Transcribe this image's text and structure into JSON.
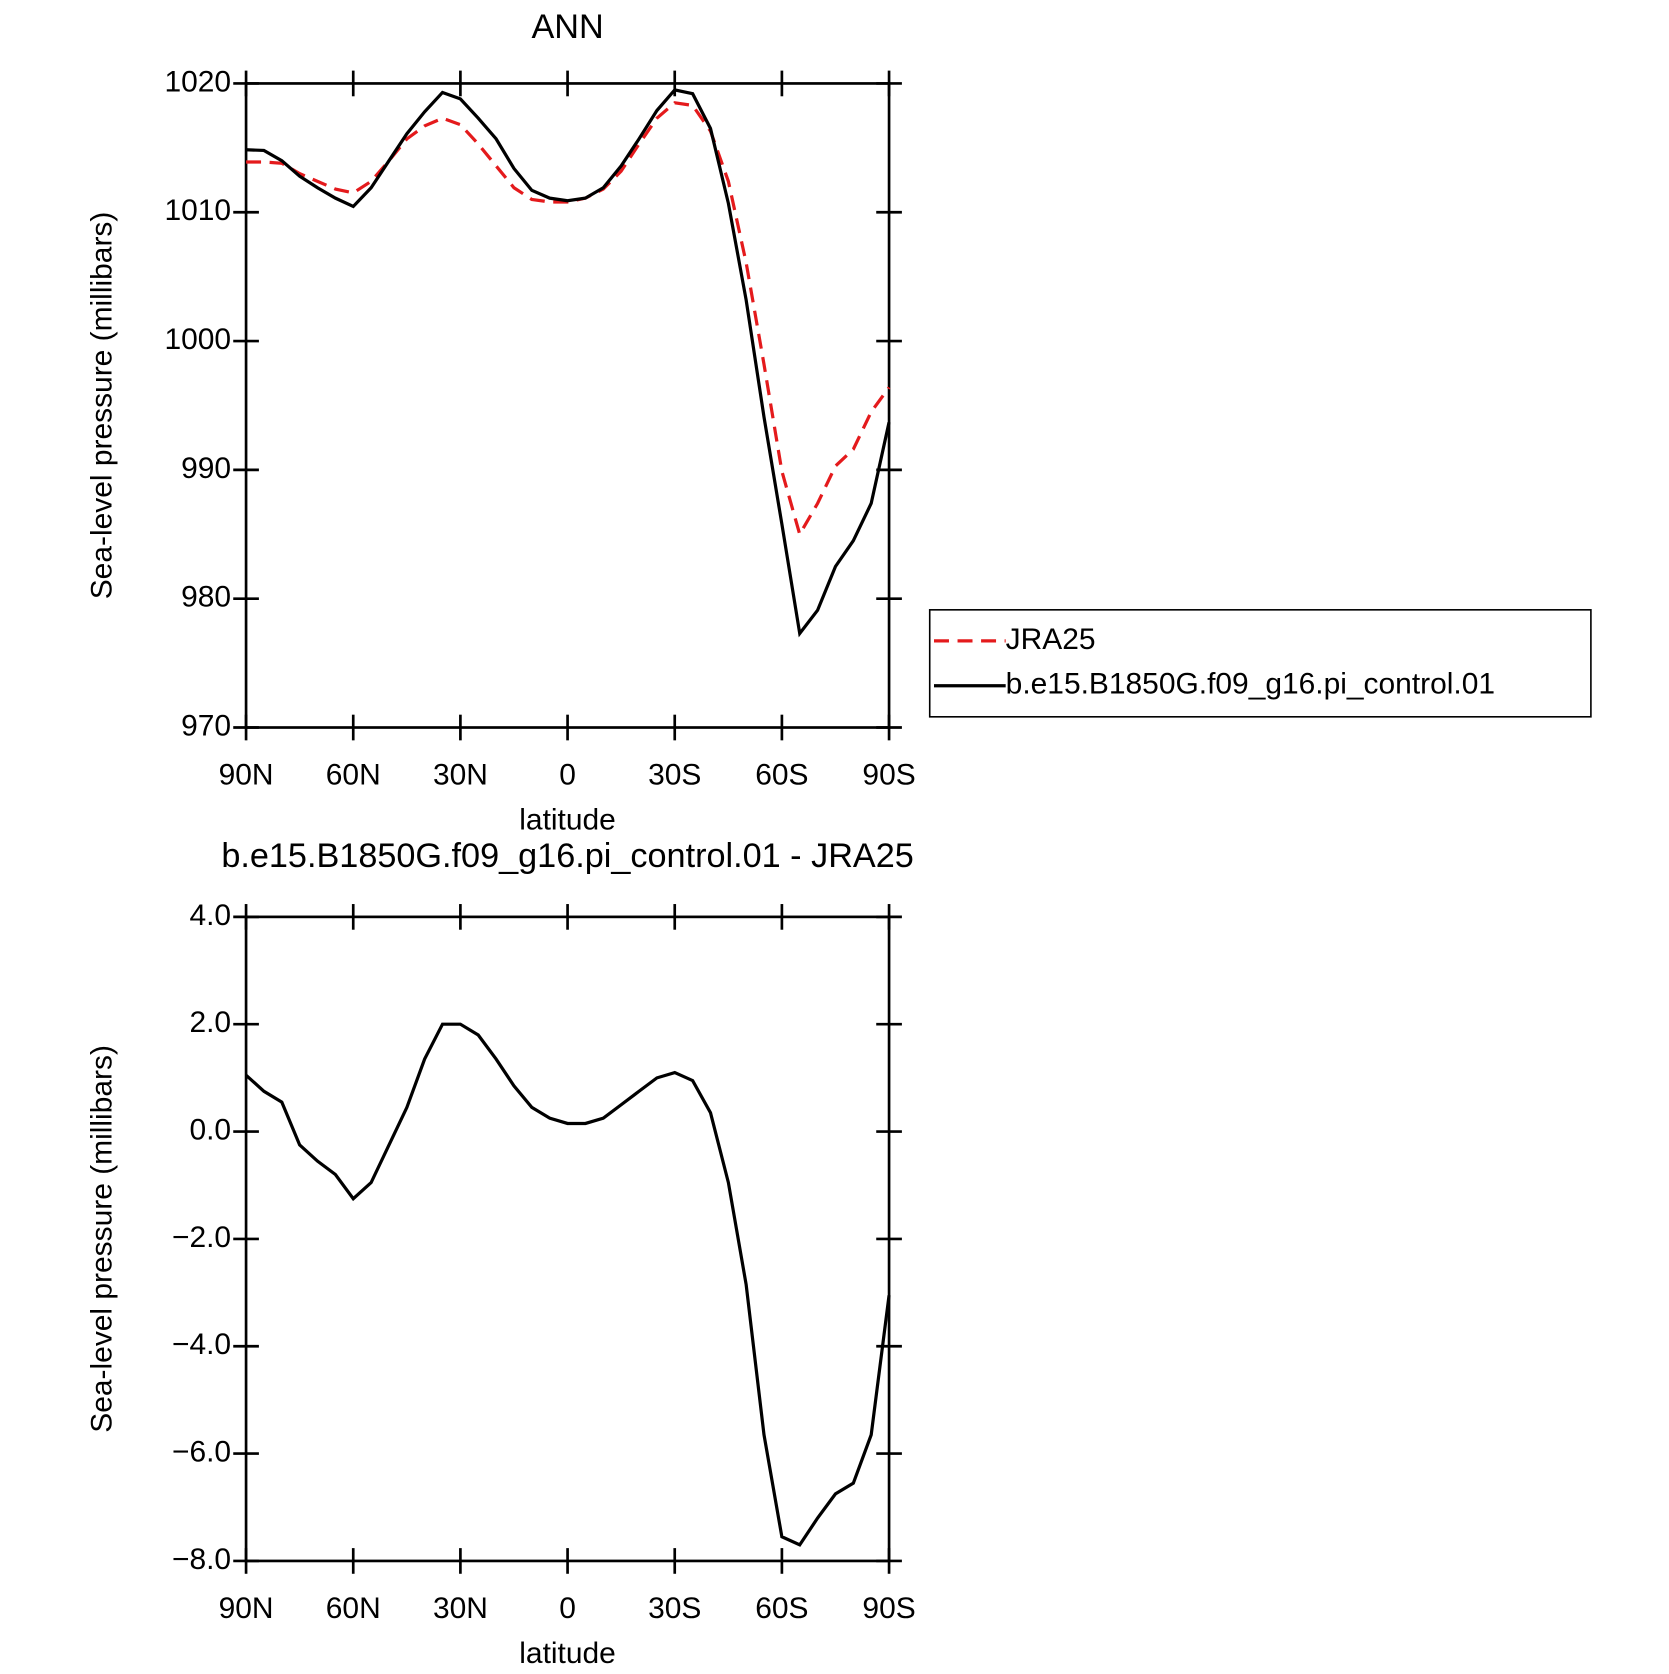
{
  "chart_data": [
    {
      "type": "line",
      "title": "ANN",
      "xlabel": "latitude",
      "ylabel": "Sea-level pressure (millibars)",
      "x": [
        90,
        85,
        80,
        75,
        70,
        65,
        60,
        55,
        50,
        45,
        40,
        35,
        30,
        25,
        20,
        15,
        10,
        5,
        0,
        -5,
        -10,
        -15,
        -20,
        -25,
        -30,
        -35,
        -40,
        -45,
        -50,
        -55,
        -60,
        -65,
        -70,
        -75,
        -80,
        -85,
        -90
      ],
      "series": [
        {
          "name": "JRA25",
          "color": "#e41a1c",
          "dash": true,
          "values": [
            1013.9,
            1013.9,
            1013.8,
            1013.0,
            1012.4,
            1011.8,
            1011.5,
            1012.4,
            1014.0,
            1015.7,
            1016.7,
            1017.3,
            1016.8,
            1015.3,
            1013.6,
            1011.9,
            1011.0,
            1010.8,
            1010.8,
            1011.1,
            1011.8,
            1013.2,
            1015.3,
            1017.3,
            1018.5,
            1018.3,
            1016.3,
            1012.4,
            1006.1,
            998.2,
            989.9,
            985.0,
            987.4,
            990.3,
            991.6,
            994.5,
            996.4
          ]
        },
        {
          "name": "b.e15.B1850G.f09_g16.pi_control.01",
          "color": "#000000",
          "dash": false,
          "values": [
            1014.85,
            1014.8,
            1014.0,
            1012.8,
            1011.9,
            1011.1,
            1010.45,
            1011.9,
            1014.0,
            1016.1,
            1017.8,
            1019.3,
            1018.8,
            1017.3,
            1015.7,
            1013.4,
            1011.7,
            1011.1,
            1010.9,
            1011.1,
            1011.9,
            1013.6,
            1015.7,
            1017.9,
            1019.5,
            1019.2,
            1016.5,
            1010.7,
            1003.2,
            994.1,
            985.8,
            977.3,
            979.1,
            982.5,
            984.5,
            987.4,
            993.7
          ]
        }
      ],
      "xlim": [
        90,
        -90
      ],
      "xticks": [
        {
          "value": 90,
          "label": "90N"
        },
        {
          "value": 60,
          "label": "60N"
        },
        {
          "value": 30,
          "label": "30N"
        },
        0,
        {
          "value": -30,
          "label": "30S"
        },
        {
          "value": -60,
          "label": "60S"
        },
        {
          "value": -90,
          "label": "90S"
        }
      ],
      "ylim": [
        970,
        1020
      ],
      "yticks": [
        970,
        980,
        990,
        1000,
        1010,
        1020
      ],
      "legend": "right"
    },
    {
      "type": "line",
      "title": "b.e15.B1850G.f09_g16.pi_control.01 - JRA25",
      "xlabel": "latitude",
      "ylabel": "Sea-level pressure (millibars)",
      "x": [
        90,
        85,
        80,
        75,
        70,
        65,
        60,
        55,
        50,
        45,
        40,
        35,
        30,
        25,
        20,
        15,
        10,
        5,
        0,
        -5,
        -10,
        -15,
        -20,
        -25,
        -30,
        -35,
        -40,
        -45,
        -50,
        -55,
        -60,
        -65,
        -70,
        -75,
        -80,
        -85,
        -90
      ],
      "series": [
        {
          "color": "#000000",
          "dash": false,
          "values": [
            1.05,
            0.75,
            0.55,
            -0.25,
            -0.55,
            -0.8,
            -1.25,
            -0.95,
            -0.25,
            0.45,
            1.35,
            2.0,
            2.0,
            1.8,
            1.35,
            0.85,
            0.45,
            0.25,
            0.15,
            0.15,
            0.25,
            0.5,
            0.75,
            1.0,
            1.1,
            0.95,
            0.35,
            -0.95,
            -2.85,
            -5.65,
            -7.55,
            -7.7,
            -7.2,
            -6.75,
            -6.55,
            -5.65,
            -3.05
          ]
        }
      ],
      "xlim": [
        90,
        -90
      ],
      "xticks": [
        {
          "value": 90,
          "label": "90N"
        },
        {
          "value": 60,
          "label": "60N"
        },
        {
          "value": 30,
          "label": "30N"
        },
        0,
        {
          "value": -30,
          "label": "30S"
        },
        {
          "value": -60,
          "label": "60S"
        },
        {
          "value": -90,
          "label": "90S"
        }
      ],
      "ylim": [
        -8,
        4
      ],
      "yticks": [
        {
          "value": -8,
          "label": "−8.0"
        },
        {
          "value": -6,
          "label": "−6.0"
        },
        {
          "value": -4,
          "label": "−4.0"
        },
        {
          "value": -2,
          "label": "−2.0"
        },
        {
          "value": 0,
          "label": "0.0"
        },
        {
          "value": 2,
          "label": "2.0"
        },
        {
          "value": 4,
          "label": "4.0"
        }
      ]
    }
  ]
}
